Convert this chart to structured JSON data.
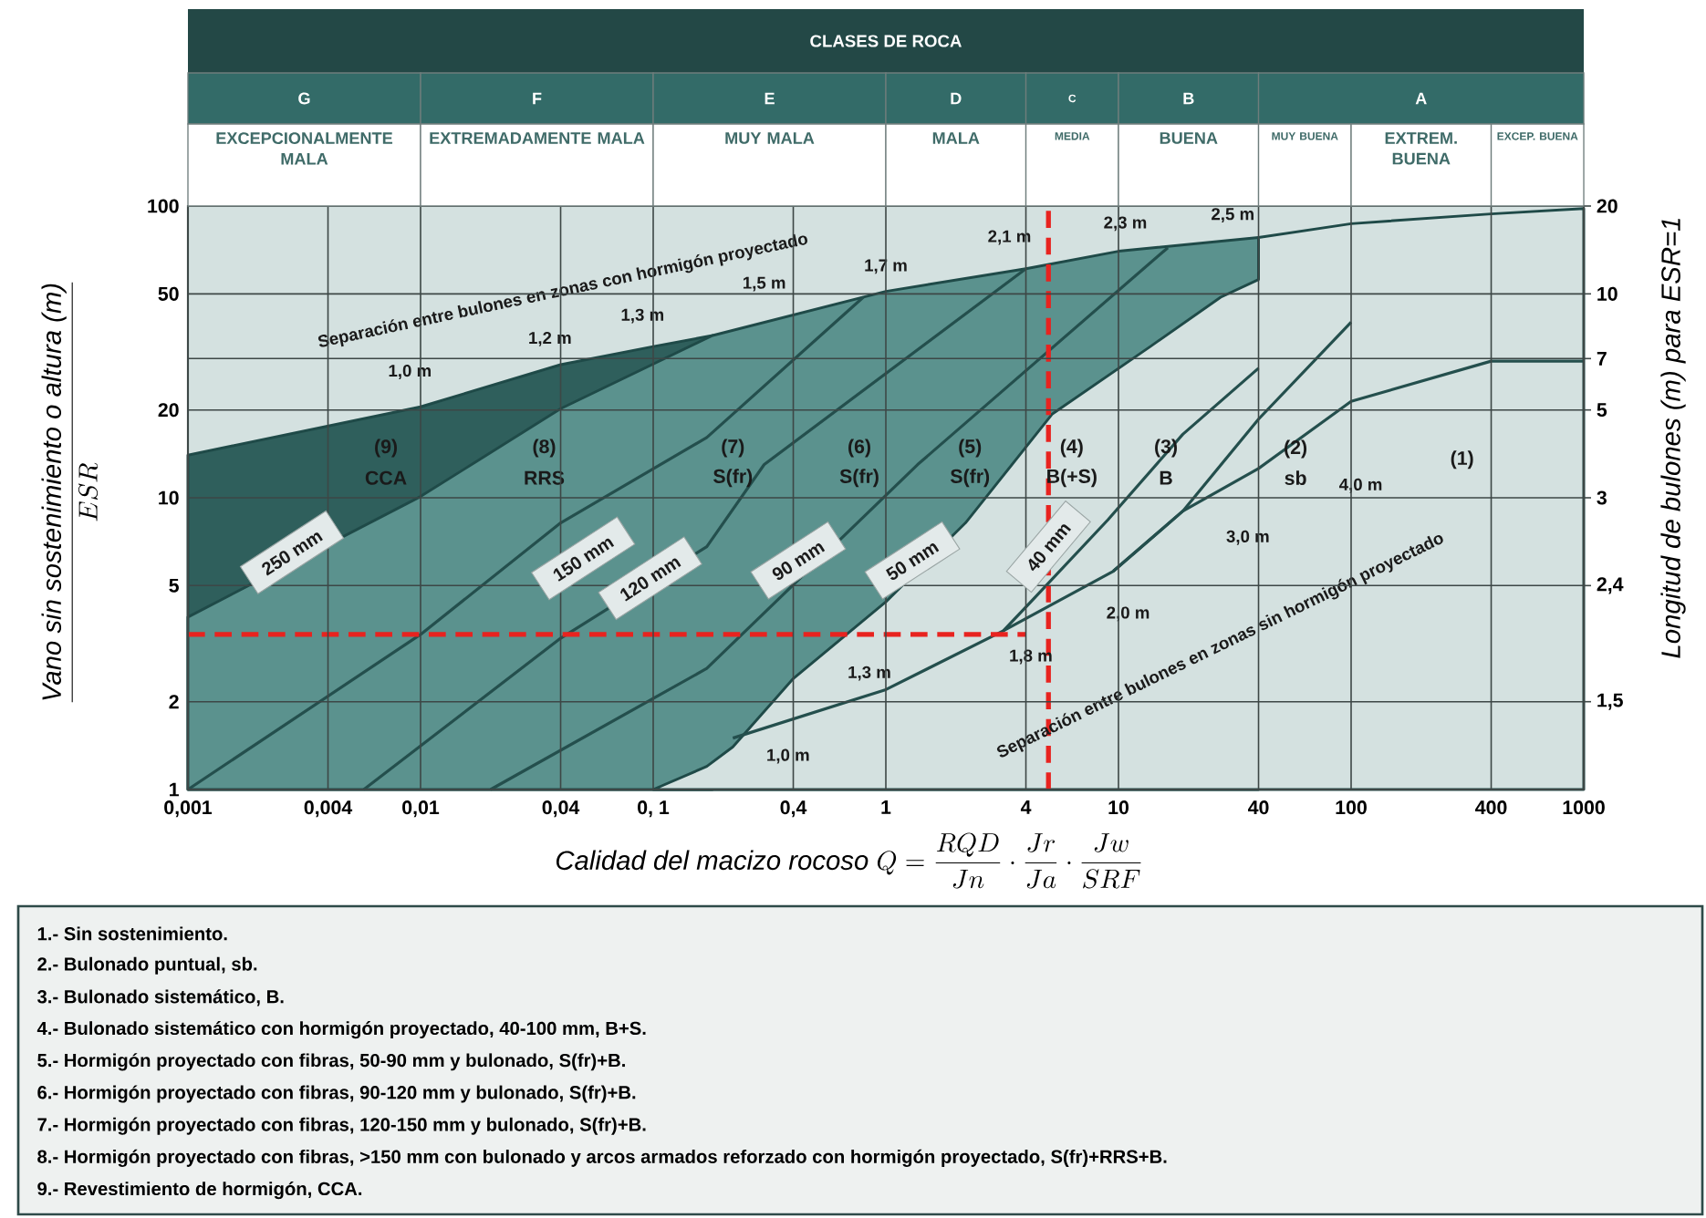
{
  "chart_data": {
    "type": "line",
    "title": "CLASES DE ROCA",
    "xlabel": "\\textit{Calidad del macizo rocoso }Q=\\frac{RQD}{Jn}\\cdot\\frac{Jr}{Ja}\\cdot\\frac{Jw}{SRF}",
    "ylabel": "\\frac{\\textit{Vano sin sostenimiento o altura (m)}}{ESR}",
    "y2label": "Longitud de bulones (m) para ESR=1",
    "log": "xy",
    "grid": true,
    "xlim": [
      0.001,
      1000
    ],
    "ylim": [
      1,
      100
    ],
    "xticks": [
      {
        "value": 0.001,
        "label": "0,001"
      },
      {
        "value": 0.004,
        "label": "0,004"
      },
      {
        "value": 0.01,
        "label": "0,01"
      },
      {
        "value": 0.04,
        "label": "0,04"
      },
      {
        "value": 0.1,
        "label": "0, 1"
      },
      {
        "value": 0.4,
        "label": "0,4"
      },
      1,
      4,
      10,
      40,
      100,
      400,
      1000
    ],
    "yticks": [
      1,
      2,
      5,
      10,
      20,
      {
        "value": 30,
        "label": null
      },
      50,
      100
    ],
    "series": [
      {
        "type": "area",
        "color": "#2f5f5c",
        "x": [
          0.001,
          0.01,
          0.04,
          0.1,
          0.18
        ],
        "values": [
          14,
          20.5,
          28.6,
          33,
          36
        ]
      },
      {
        "type": "area",
        "color": "#5b928e",
        "x": [
          0.001,
          0.01,
          0.04,
          0.18,
          1,
          4,
          10,
          40
        ],
        "values": [
          3.9,
          10.1,
          20.2,
          36,
          51,
          61,
          70,
          78
        ]
      },
      {
        "type": "area",
        "color": "#d4e1e0",
        "x": [
          0.1,
          0.17,
          0.22,
          0.4,
          1,
          2.2,
          5.2,
          13.7,
          27.5,
          40,
          40,
          100,
          400,
          1000
        ],
        "values": [
          1,
          1.2,
          1.4,
          2.4,
          4.4,
          8.2,
          19.4,
          33,
          48.7,
          56,
          78,
          87,
          94,
          98
        ]
      },
      {
        "color": "#244f4d",
        "x": [
          0.001,
          0.01,
          0.04,
          0.17,
          0.8
        ],
        "values": [
          1,
          3.4,
          8.2,
          16.1,
          48.7
        ]
      },
      {
        "color": "#244f4d",
        "x": [
          0.0057,
          0.04,
          0.17,
          0.3,
          4
        ],
        "values": [
          1,
          3.3,
          6.8,
          13,
          61
        ]
      },
      {
        "color": "#244f4d",
        "x": [
          0.02,
          0.17,
          1.37,
          16.3
        ],
        "values": [
          1,
          2.6,
          13,
          72
        ]
      },
      {
        "color": "#244f4d",
        "x": [
          0.22,
          1,
          3.2,
          9.5,
          18.9,
          40,
          100,
          400,
          1000
        ],
        "values": [
          1.5,
          2.2,
          3.5,
          5.6,
          9,
          12.6,
          21.4,
          29.4,
          29.4
        ]
      },
      {
        "color": "#244f4d",
        "x": [
          3.2,
          4.2,
          9,
          18.9,
          40
        ],
        "values": [
          3.5,
          4.4,
          8.4,
          16.5,
          27.8
        ]
      },
      {
        "color": "#244f4d",
        "x": [
          9.5,
          18.9,
          40,
          100
        ],
        "values": [
          5.6,
          9,
          18.6,
          40
        ]
      },
      {
        "color": "#e8231f",
        "line_style": "dashed",
        "x": [
          0.001,
          4
        ],
        "values": [
          3.4,
          3.4
        ]
      },
      {
        "color": "#e8231f",
        "line_style": "dashed",
        "x": [
          5,
          5
        ],
        "values": [
          1,
          100
        ]
      }
    ],
    "annotations": [
      "(9)",
      "CCA",
      "(8)",
      "RRS",
      "(7)",
      "S(fr)",
      "(6)",
      "S(fr)",
      "(5)",
      "S(fr)",
      "(4)",
      "B(+S)",
      "(3)",
      "B",
      "(2)",
      "sb",
      "(1)",
      "1,0 m",
      "1,2 m",
      "1,3 m",
      "1,5 m",
      "1,7 m",
      "2,1 m",
      "2,3 m",
      "2,5 m",
      "1,0 m",
      "1,3 m",
      "1,8 m",
      "2,0 m",
      "3,0 m",
      "4,0 m",
      "Separación entre bulones en zonas con hormigón proyectado",
      "Separación entre bulones en zonas sin hormigón proyectado",
      "250 mm",
      "150 mm",
      "120 mm",
      "90 mm",
      "50 mm",
      "40 mm",
      "20",
      "10",
      "7",
      "5",
      "3",
      "2,4",
      "1,5",
      "G",
      "F",
      "E",
      "D",
      "C",
      "B",
      "A",
      "EXCEPCIONALMENTE MALA",
      "EXTREMADAMENTE MALA",
      "MUY MALA",
      "MALA",
      "MEDIA",
      "BUENA",
      "MUY BUENA",
      "EXTREM. BUENA",
      "EXCEP. BUENA",
      "1.- Sin sostenimiento.",
      "2.- Bulonado puntual, sb.",
      "3.- Bulonado sistemático, B.",
      "4.- Bulonado sistemático con hormigón proyectado, 40-100 mm, B+S.",
      "5.- Hormigón proyectado con fibras, 50-90 mm y bulonado, S(fr)+B.",
      "6.- Hormigón proyectado con fibras, 90-120 mm y bulonado, S(fr)+B.",
      "7.- Hormigón proyectado con fibras, 120-150 mm y bulonado, S(fr)+B.",
      "8.- Hormigón proyectado con fibras, >150 mm con bulonado y arcos armados reforzado con hormigón proyectado, S(fr)+RRS+B.",
      "9.- Revestimiento de hormigón, CCA."
    ]
  }
}
